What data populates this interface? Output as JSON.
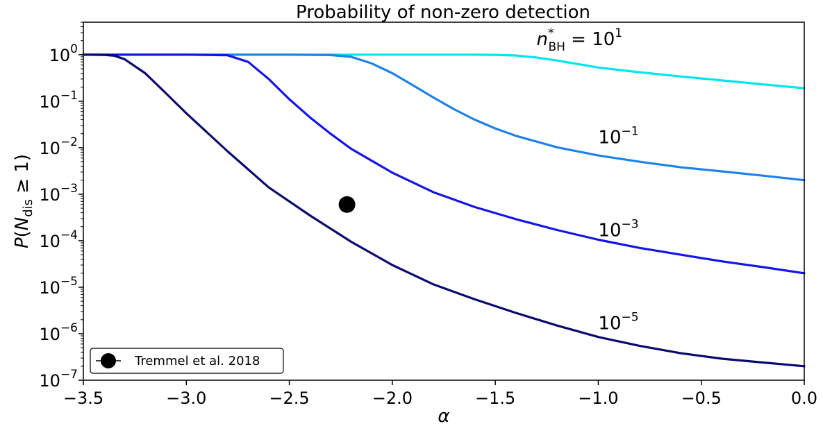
{
  "chart_data": {
    "type": "line",
    "title": "Probability of non-zero detection",
    "xlabel": "α",
    "ylabel": "P(N_dis ≥ 1)",
    "xlim": [
      -3.5,
      0.0
    ],
    "ylim": [
      1e-07,
      5
    ],
    "yscale": "log",
    "grid": false,
    "xticks": [
      -3.5,
      -3.0,
      -2.5,
      -2.0,
      -1.5,
      -1.0,
      -0.5,
      0.0
    ],
    "xtick_labels": [
      "−3.5",
      "−3.0",
      "−2.5",
      "−2.0",
      "−1.5",
      "−1.0",
      "−0.5",
      "0.0"
    ],
    "yticks": [
      {
        "value": 1,
        "base": "10",
        "exp": "0"
      },
      {
        "value": 0.1,
        "base": "10",
        "exp": "−1"
      },
      {
        "value": 0.01,
        "base": "10",
        "exp": "−2"
      },
      {
        "value": 0.001,
        "base": "10",
        "exp": "−3"
      },
      {
        "value": 0.0001,
        "base": "10",
        "exp": "−4"
      },
      {
        "value": 1e-05,
        "base": "10",
        "exp": "−5"
      },
      {
        "value": 1e-06,
        "base": "10",
        "exp": "−6"
      },
      {
        "value": 1e-07,
        "base": "10",
        "exp": "−7"
      }
    ],
    "series": [
      {
        "label": "10^1",
        "color": "#00e5ee",
        "x": [
          -3.5,
          -3.3,
          -3.0,
          -2.5,
          -2.0,
          -1.6,
          -1.5,
          -1.4,
          -1.3,
          -1.2,
          -1.1,
          -1.0,
          -0.8,
          -0.6,
          -0.4,
          -0.2,
          0.0
        ],
        "y": [
          1.0,
          1.0,
          1.0,
          1.0,
          1.0,
          1.0,
          0.99,
          0.96,
          0.87,
          0.75,
          0.63,
          0.53,
          0.42,
          0.34,
          0.28,
          0.23,
          0.19
        ]
      },
      {
        "label": "10^-1",
        "color": "#1e82e6",
        "x": [
          -3.5,
          -2.5,
          -2.3,
          -2.2,
          -2.1,
          -2.0,
          -1.9,
          -1.8,
          -1.7,
          -1.6,
          -1.5,
          -1.4,
          -1.2,
          -1.0,
          -0.8,
          -0.6,
          -0.4,
          -0.2,
          0.0
        ],
        "y": [
          1.0,
          1.0,
          0.98,
          0.9,
          0.65,
          0.4,
          0.22,
          0.12,
          0.067,
          0.04,
          0.026,
          0.018,
          0.0102,
          0.0068,
          0.005,
          0.0038,
          0.0031,
          0.0025,
          0.002
        ]
      },
      {
        "label": "10^-3",
        "color": "#1414e6",
        "x": [
          -3.5,
          -3.0,
          -2.8,
          -2.7,
          -2.6,
          -2.5,
          -2.4,
          -2.3,
          -2.2,
          -2.0,
          -1.8,
          -1.6,
          -1.4,
          -1.2,
          -1.0,
          -0.8,
          -0.6,
          -0.4,
          -0.2,
          0.0
        ],
        "y": [
          1.0,
          1.0,
          0.97,
          0.7,
          0.3,
          0.11,
          0.045,
          0.02,
          0.0095,
          0.0029,
          0.0011,
          0.00053,
          0.00029,
          0.00017,
          0.000105,
          7e-05,
          5e-05,
          3.6e-05,
          2.7e-05,
          2e-05
        ]
      },
      {
        "label": "10^-5",
        "color": "#0a0a6e",
        "x": [
          -3.5,
          -3.4,
          -3.35,
          -3.3,
          -3.2,
          -3.1,
          -3.0,
          -2.8,
          -2.6,
          -2.4,
          -2.2,
          -2.0,
          -1.8,
          -1.6,
          -1.4,
          -1.2,
          -1.0,
          -0.8,
          -0.6,
          -0.4,
          -0.2,
          0.0
        ],
        "y": [
          1.0,
          0.99,
          0.95,
          0.8,
          0.4,
          0.15,
          0.055,
          0.0084,
          0.0014,
          0.00035,
          9.5e-05,
          3e-05,
          1.15e-05,
          5.5e-06,
          2.8e-06,
          1.5e-06,
          8.5e-07,
          5.5e-07,
          3.8e-07,
          2.9e-07,
          2.4e-07,
          2e-07
        ]
      }
    ],
    "annotations": [
      {
        "x": -1.3,
        "y": 1.6,
        "base": "n",
        "sup": "*",
        "sub": "BH",
        "rest": " = 10",
        "exp": "1"
      },
      {
        "x": -1.0,
        "y": 0.0125,
        "base": "10",
        "exp": "−1"
      },
      {
        "x": -1.0,
        "y": 0.000125,
        "base": "10",
        "exp": "−3"
      },
      {
        "x": -1.0,
        "y": 1.25e-06,
        "base": "10",
        "exp": "−5"
      }
    ],
    "points": [
      {
        "label": "Tremmel et al. 2018",
        "x": -2.22,
        "y": 0.0006,
        "color": "#000000"
      }
    ],
    "legend": {
      "position": "lower-left",
      "entries": [
        "Tremmel et al. 2018"
      ]
    }
  }
}
